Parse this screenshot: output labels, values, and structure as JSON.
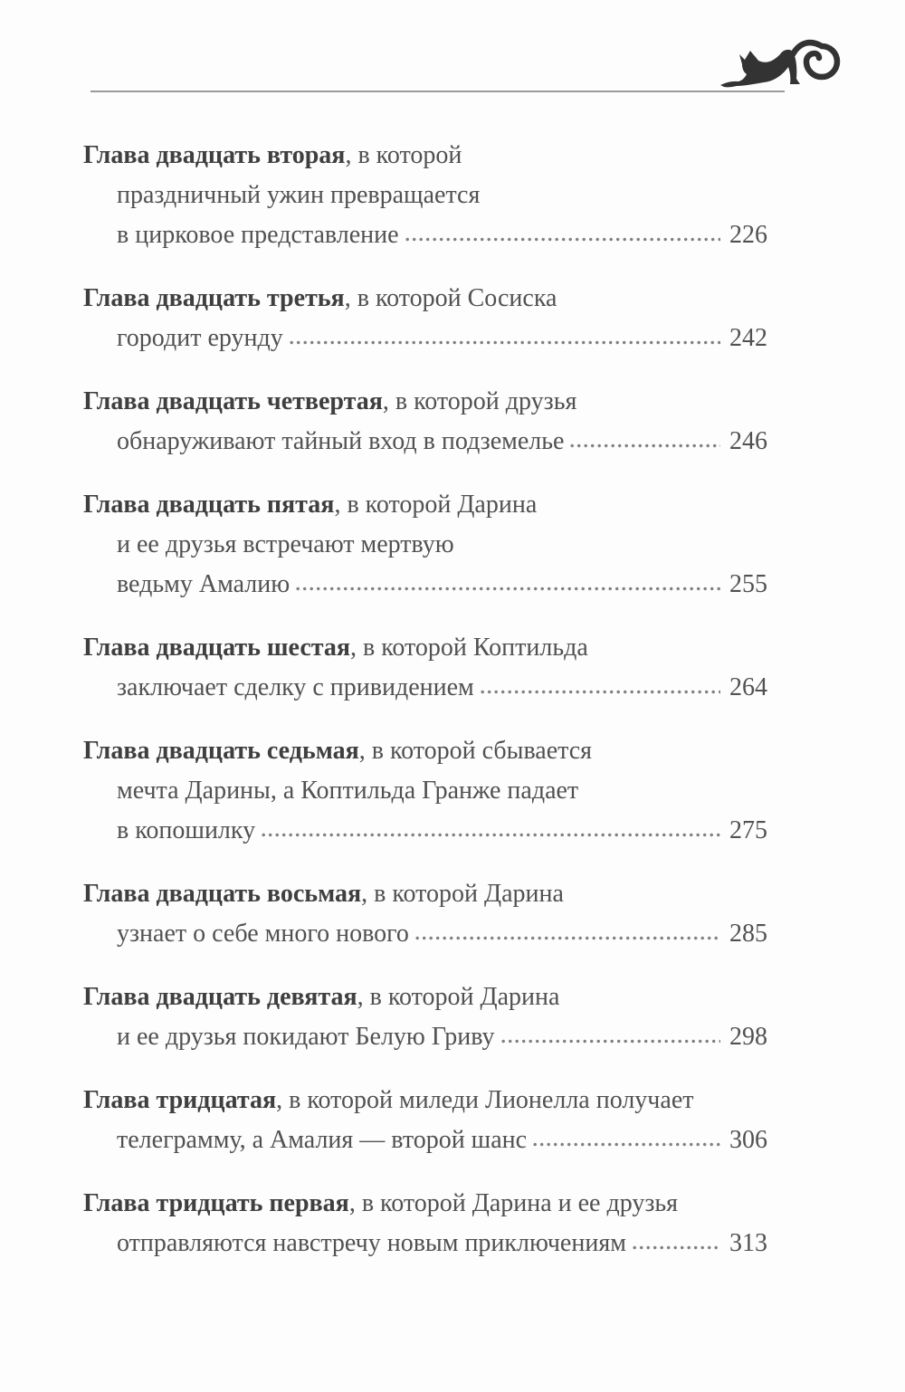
{
  "page": {
    "type": "table-of-contents",
    "language": "ru"
  },
  "header": {
    "cat_icon": "stretching-cat-silhouette",
    "rule_color": "#9a9a9a"
  },
  "colors": {
    "text": "#515151",
    "title": "#3f3f3f",
    "dots": "#808080",
    "background": "#fdfdfd"
  },
  "toc": {
    "entries": [
      {
        "title": "Глава двадцать вторая",
        "title_rest": ", в которой",
        "middle_lines": [
          "праздничный ужин превращается"
        ],
        "last_line": "в цирковое представление",
        "page": "226"
      },
      {
        "title": "Глава двадцать третья",
        "title_rest": ", в которой Сосиска",
        "middle_lines": [],
        "last_line": "городит ерунду",
        "page": "242"
      },
      {
        "title": "Глава двадцать четвертая",
        "title_rest": ", в которой друзья",
        "middle_lines": [],
        "last_line": "обнаруживают тайный вход в подземелье",
        "page": "246"
      },
      {
        "title": "Глава двадцать пятая",
        "title_rest": ", в которой Дарина",
        "middle_lines": [
          "и ее друзья встречают мертвую"
        ],
        "last_line": "ведьму Амалию",
        "page": "255"
      },
      {
        "title": "Глава двадцать шестая",
        "title_rest": ", в которой Коптильда",
        "middle_lines": [],
        "last_line": "заключает сделку с привидением",
        "page": "264"
      },
      {
        "title": "Глава двадцать седьмая",
        "title_rest": ", в которой сбывается",
        "middle_lines": [
          "мечта Дарины, а Коптильда Гранже падает"
        ],
        "last_line": "в копошилку",
        "page": "275"
      },
      {
        "title": "Глава двадцать восьмая",
        "title_rest": ", в которой Дарина",
        "middle_lines": [],
        "last_line": "узнает о себе много нового",
        "page": "285"
      },
      {
        "title": "Глава двадцать девятая",
        "title_rest": ", в которой Дарина",
        "middle_lines": [],
        "last_line": "и ее друзья покидают Белую Гриву",
        "page": "298"
      },
      {
        "title": "Глава тридцатая",
        "title_rest": ", в которой миледи Лионелла получает",
        "middle_lines": [],
        "last_line": "телеграмму, а Амалия — второй шанс",
        "page": "306"
      },
      {
        "title": "Глава тридцать первая",
        "title_rest": ", в которой Дарина и ее друзья",
        "middle_lines": [],
        "last_line": "отправляются навстречу новым приключениям",
        "page": "313"
      }
    ]
  }
}
